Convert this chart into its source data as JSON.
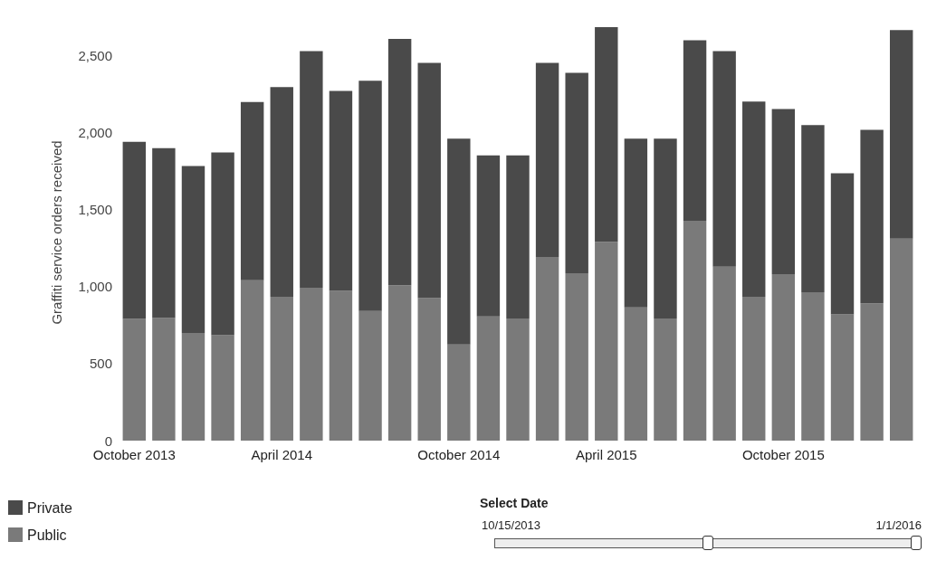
{
  "chart_data": {
    "type": "bar",
    "stacked": true,
    "ylabel": "Graffiti service orders received",
    "categories": [
      "October 2013",
      null,
      null,
      null,
      null,
      "April 2014",
      null,
      null,
      null,
      null,
      null,
      "October 2014",
      null,
      null,
      null,
      null,
      "April 2015",
      null,
      null,
      null,
      null,
      null,
      "October 2015",
      null,
      null,
      null,
      null
    ],
    "series": [
      {
        "name": "Public",
        "color": "#7a7a7a",
        "values": [
          790,
          796,
          698,
          684,
          1041,
          933,
          992,
          971,
          841,
          1008,
          924,
          624,
          806,
          792,
          1192,
          1086,
          1290,
          865,
          792,
          1427,
          1129,
          933,
          1080,
          963,
          819,
          890,
          1310
        ]
      },
      {
        "name": "Private",
        "color": "#4a4a4a",
        "values": [
          1149,
          1102,
          1084,
          1185,
          1155,
          1361,
          1535,
          1297,
          1494,
          1598,
          1527,
          1335,
          1045,
          1059,
          1259,
          1300,
          1392,
          1094,
          1167,
          1171,
          1398,
          1267,
          1071,
          1084,
          916,
          1126,
          1353
        ]
      }
    ],
    "ylim": [
      0,
      2700
    ],
    "yticks": [
      0,
      500,
      {
        "value": 1000,
        "label": "1,000"
      },
      {
        "value": 1500,
        "label": "1,500"
      },
      {
        "value": 2000,
        "label": "2,000"
      },
      {
        "value": 2500,
        "label": "2,500"
      }
    ],
    "grid": false,
    "legend": "bottom left",
    "annotations": [
      "Select Date",
      "10/15/2013",
      "1/1/2016"
    ]
  }
}
